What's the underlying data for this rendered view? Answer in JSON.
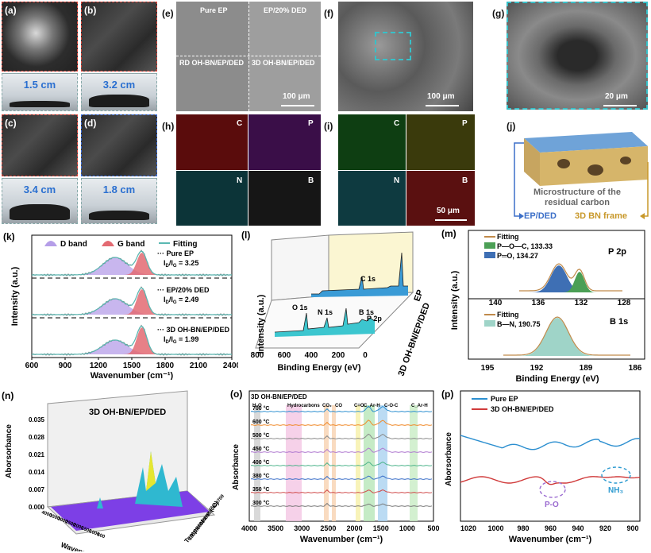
{
  "labels": {
    "a": "(a)",
    "b": "(b)",
    "c": "(c)",
    "d": "(d)",
    "e": "(e)",
    "f": "(f)",
    "g": "(g)",
    "h": "(h)",
    "i": "(i)",
    "j": "(j)",
    "k": "(k)",
    "l": "(l)",
    "m": "(m)",
    "n": "(n)",
    "o": "(o)",
    "p": "(p)"
  },
  "photos": {
    "a_height": "1.5 cm",
    "b_height": "3.2 cm",
    "c_height": "3.4 cm",
    "d_height": "1.8 cm"
  },
  "sem_e": {
    "q1": "Pure EP",
    "q2": "EP/20% DED",
    "q3": "RD OH-BN/EP/DED",
    "q4": "3D OH-BN/EP/DED",
    "scale": "100 μm"
  },
  "sem_f": {
    "scale": "100 μm"
  },
  "sem_g": {
    "scale": "20 μm"
  },
  "map_h": {
    "c": "C",
    "p": "P",
    "n": "N",
    "b": "B"
  },
  "map_i": {
    "c": "C",
    "p": "P",
    "n": "N",
    "b": "B",
    "scale": "50 μm"
  },
  "diagram_j": {
    "title1": "Microstructure of the",
    "title2": "residual carbon",
    "left": "EP/DED",
    "right": "3D BN frame"
  },
  "colors": {
    "d_band": "#b59ee8",
    "g_band": "#e36a72",
    "fitting": "#5ab8b2",
    "ep_line": "#2c8fd0",
    "bn_line": "#d03a3a"
  },
  "chart_data": [
    {
      "id": "k",
      "type": "line",
      "title": "",
      "xlabel": "Wavenumber (cm⁻¹)",
      "ylabel": "Intensity (a.u.)",
      "xticks": [
        "600",
        "900",
        "1200",
        "1500",
        "1800",
        "2100",
        "2400"
      ],
      "xlim": [
        600,
        2400
      ],
      "legend": [
        "D band",
        "G band",
        "Fitting"
      ],
      "series": [
        {
          "name": "Pure EP",
          "ratio": "I_D/I_G = 3.25",
          "ratio_main": "I",
          "ratio_sub1": "D",
          "ratio_mid": "/I",
          "ratio_sub2": "G",
          "ratio_val": " = 3.25"
        },
        {
          "name": "EP/20% DED",
          "ratio": "I_D/I_G = 2.49",
          "ratio_main": "I",
          "ratio_sub1": "D",
          "ratio_mid": "/I",
          "ratio_sub2": "G",
          "ratio_val": " = 2.49"
        },
        {
          "name": "3D OH-BN/EP/DED",
          "ratio": "I_D/I_G = 1.99",
          "ratio_main": "I",
          "ratio_sub1": "D",
          "ratio_mid": "/I",
          "ratio_sub2": "G",
          "ratio_val": " = 1.99"
        }
      ],
      "d_band_center": 1350,
      "g_band_center": 1590
    },
    {
      "id": "l",
      "type": "line",
      "xlabel": "Binding Energy (eV)",
      "ylabel": "Intensity (a.u.)",
      "xticks": [
        "800",
        "600",
        "400",
        "200",
        "0"
      ],
      "series_names": [
        "EP",
        "3D OH-BN/EP/DED"
      ],
      "peaks": [
        "O 1s",
        "N 1s",
        "C 1s",
        "B 1s",
        "P 2p"
      ]
    },
    {
      "id": "m",
      "type": "line",
      "xlabel": "Binding Energy (eV)",
      "ylabel": "Intensity (a.u.)",
      "top": {
        "title": "P 2p",
        "xticks": [
          "140",
          "136",
          "132",
          "128"
        ],
        "legend": [
          "Fitting",
          "P—O—C, 133.33",
          "P═O, 134.27"
        ]
      },
      "bottom": {
        "title": "B 1s",
        "xticks": [
          "195",
          "192",
          "189",
          "186"
        ],
        "legend": [
          "Fitting",
          "B—N, 190.75"
        ]
      }
    },
    {
      "id": "n",
      "type": "area",
      "title": "3D OH-BN/EP/DED",
      "xlabel": "Wavenumber (cm⁻¹)",
      "ylabel": "Aborsorbance",
      "zlabel": "Temperature (°C)",
      "yticks": [
        "0.000",
        "0.007",
        "0.014",
        "0.021",
        "0.028",
        "0.035"
      ],
      "xticks": [
        "4000",
        "3500",
        "3000",
        "2500",
        "2000",
        "1500",
        "1000",
        "500"
      ],
      "zticks": [
        "100",
        "200",
        "300",
        "400",
        "500",
        "600",
        "700"
      ]
    },
    {
      "id": "o",
      "type": "line",
      "title": "3D OH-BN/EP/DED",
      "xlabel": "Wavenumber (cm⁻¹)",
      "ylabel": "Absorbance",
      "xticks": [
        "4000",
        "3500",
        "3000",
        "2500",
        "2000",
        "1500",
        "1000",
        "500"
      ],
      "temps": [
        "700 °C",
        "600 °C",
        "500 °C",
        "450 °C",
        "400 °C",
        "380 °C",
        "350 °C",
        "300 °C"
      ],
      "bands": [
        "H₂O",
        "Hydrocarbons",
        "CO₂",
        "CO",
        "C=O",
        "C_Ar-H",
        "C-O-C",
        "C_Ar-H"
      ]
    },
    {
      "id": "p",
      "type": "line",
      "xlabel": "Wavenumber (cm⁻¹)",
      "ylabel": "Aborsorbance",
      "xticks": [
        "1020",
        "1000",
        "980",
        "960",
        "940",
        "920",
        "900"
      ],
      "legend": [
        "Pure EP",
        "3D OH-BN/EP/DED"
      ],
      "annotations": [
        "P-O",
        "NH₃"
      ]
    }
  ]
}
